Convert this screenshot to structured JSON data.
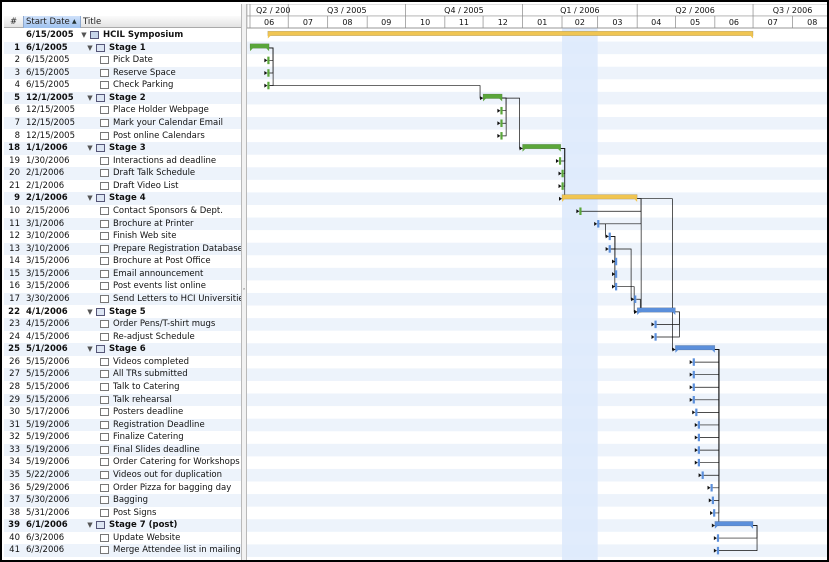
{
  "outline": {
    "columns": {
      "num": "#",
      "start_date": "Start Date",
      "title": "Title"
    },
    "sort_indicator": "▲",
    "rows": [
      {
        "id": "",
        "date": "6/15/2005",
        "title": "HCIL Symposium",
        "level": 0,
        "summary": true,
        "bar": "gold",
        "start": "2005-06-15",
        "end": "2006-06-30"
      },
      {
        "id": "1",
        "date": "6/1/2005",
        "title": "Stage 1",
        "level": 1,
        "summary": true,
        "bar": "green",
        "start": "2005-06-01",
        "end": "2005-06-15"
      },
      {
        "id": "2",
        "date": "6/15/2005",
        "title": "Pick Date",
        "level": 2,
        "summary": false,
        "bar": "green",
        "start": "2005-06-15",
        "end": "2005-06-15"
      },
      {
        "id": "3",
        "date": "6/15/2005",
        "title": "Reserve Space",
        "level": 2,
        "summary": false,
        "bar": "green",
        "start": "2005-06-15",
        "end": "2005-06-15"
      },
      {
        "id": "4",
        "date": "6/15/2005",
        "title": "Check Parking",
        "level": 2,
        "summary": false,
        "bar": "green",
        "start": "2005-06-15",
        "end": "2005-06-15"
      },
      {
        "id": "5",
        "date": "12/1/2005",
        "title": "Stage 2",
        "level": 1,
        "summary": true,
        "bar": "green",
        "start": "2005-12-01",
        "end": "2005-12-15"
      },
      {
        "id": "6",
        "date": "12/15/2005",
        "title": "Place Holder Webpage",
        "level": 2,
        "summary": false,
        "bar": "green",
        "start": "2005-12-15",
        "end": "2005-12-15"
      },
      {
        "id": "7",
        "date": "12/15/2005",
        "title": "Mark your Calendar Email",
        "level": 2,
        "summary": false,
        "bar": "green",
        "start": "2005-12-15",
        "end": "2005-12-15"
      },
      {
        "id": "8",
        "date": "12/15/2005",
        "title": "Post online Calendars",
        "level": 2,
        "summary": false,
        "bar": "green",
        "start": "2005-12-15",
        "end": "2005-12-15"
      },
      {
        "id": "18",
        "date": "1/1/2006",
        "title": "Stage 3",
        "level": 1,
        "summary": true,
        "bar": "green",
        "start": "2006-01-01",
        "end": "2006-01-30"
      },
      {
        "id": "19",
        "date": "1/30/2006",
        "title": "Interactions ad deadline",
        "level": 2,
        "summary": false,
        "bar": "green",
        "start": "2006-01-30",
        "end": "2006-01-30"
      },
      {
        "id": "20",
        "date": "2/1/2006",
        "title": "Draft Talk Schedule",
        "level": 2,
        "summary": false,
        "bar": "green",
        "start": "2006-02-01",
        "end": "2006-02-01"
      },
      {
        "id": "21",
        "date": "2/1/2006",
        "title": "Draft Video List",
        "level": 2,
        "summary": false,
        "bar": "green",
        "start": "2006-02-01",
        "end": "2006-02-01"
      },
      {
        "id": "9",
        "date": "2/1/2006",
        "title": "Stage 4",
        "level": 1,
        "summary": true,
        "bar": "gold",
        "start": "2006-02-01",
        "end": "2006-03-31"
      },
      {
        "id": "10",
        "date": "2/15/2006",
        "title": "Contact Sponsors & Dept.",
        "level": 2,
        "summary": false,
        "bar": "green",
        "start": "2006-02-15",
        "end": "2006-02-15"
      },
      {
        "id": "11",
        "date": "3/1/2006",
        "title": "Brochure at Printer",
        "level": 2,
        "summary": false,
        "bar": "blue",
        "start": "2006-03-01",
        "end": "2006-03-01"
      },
      {
        "id": "12",
        "date": "3/10/2006",
        "title": "Finish Web site",
        "level": 2,
        "summary": false,
        "bar": "blue",
        "start": "2006-03-10",
        "end": "2006-03-10"
      },
      {
        "id": "13",
        "date": "3/10/2006",
        "title": "Prepare Registration Database",
        "level": 2,
        "summary": false,
        "bar": "blue",
        "start": "2006-03-10",
        "end": "2006-03-10"
      },
      {
        "id": "14",
        "date": "3/15/2006",
        "title": "Brochure at Post Office",
        "level": 2,
        "summary": false,
        "bar": "blue",
        "start": "2006-03-15",
        "end": "2006-03-15"
      },
      {
        "id": "15",
        "date": "3/15/2006",
        "title": "Email announcement",
        "level": 2,
        "summary": false,
        "bar": "blue",
        "start": "2006-03-15",
        "end": "2006-03-15"
      },
      {
        "id": "16",
        "date": "3/15/2006",
        "title": "Post events list online",
        "level": 2,
        "summary": false,
        "bar": "blue",
        "start": "2006-03-15",
        "end": "2006-03-15"
      },
      {
        "id": "17",
        "date": "3/30/2006",
        "title": "Send Letters to HCI Universities",
        "level": 2,
        "summary": false,
        "bar": "blue",
        "start": "2006-03-30",
        "end": "2006-03-30"
      },
      {
        "id": "22",
        "date": "4/1/2006",
        "title": "Stage 5",
        "level": 1,
        "summary": true,
        "bar": "blue",
        "start": "2006-04-01",
        "end": "2006-04-30"
      },
      {
        "id": "23",
        "date": "4/15/2006",
        "title": "Order Pens/T-shirt mugs",
        "level": 2,
        "summary": false,
        "bar": "blue",
        "start": "2006-04-15",
        "end": "2006-04-15"
      },
      {
        "id": "24",
        "date": "4/15/2006",
        "title": "Re-adjust Schedule",
        "level": 2,
        "summary": false,
        "bar": "blue",
        "start": "2006-04-15",
        "end": "2006-04-15"
      },
      {
        "id": "25",
        "date": "5/1/2006",
        "title": "Stage 6",
        "level": 1,
        "summary": true,
        "bar": "blue",
        "start": "2006-05-01",
        "end": "2006-05-31"
      },
      {
        "id": "26",
        "date": "5/15/2006",
        "title": "Videos completed",
        "level": 2,
        "summary": false,
        "bar": "blue",
        "start": "2006-05-15",
        "end": "2006-05-15"
      },
      {
        "id": "27",
        "date": "5/15/2006",
        "title": "All TRs submitted",
        "level": 2,
        "summary": false,
        "bar": "blue",
        "start": "2006-05-15",
        "end": "2006-05-15"
      },
      {
        "id": "28",
        "date": "5/15/2006",
        "title": "Talk to Catering",
        "level": 2,
        "summary": false,
        "bar": "blue",
        "start": "2006-05-15",
        "end": "2006-05-15"
      },
      {
        "id": "29",
        "date": "5/15/2006",
        "title": "Talk rehearsal",
        "level": 2,
        "summary": false,
        "bar": "blue",
        "start": "2006-05-15",
        "end": "2006-05-15"
      },
      {
        "id": "30",
        "date": "5/17/2006",
        "title": "Posters deadline",
        "level": 2,
        "summary": false,
        "bar": "blue",
        "start": "2006-05-17",
        "end": "2006-05-17"
      },
      {
        "id": "31",
        "date": "5/19/2006",
        "title": "Registration Deadline",
        "level": 2,
        "summary": false,
        "bar": "blue",
        "start": "2006-05-19",
        "end": "2006-05-19"
      },
      {
        "id": "32",
        "date": "5/19/2006",
        "title": "Finalize Catering",
        "level": 2,
        "summary": false,
        "bar": "blue",
        "start": "2006-05-19",
        "end": "2006-05-19"
      },
      {
        "id": "33",
        "date": "5/19/2006",
        "title": "Final Slides deadline",
        "level": 2,
        "summary": false,
        "bar": "blue",
        "start": "2006-05-19",
        "end": "2006-05-19"
      },
      {
        "id": "34",
        "date": "5/19/2006",
        "title": "Order Catering for Workshops",
        "level": 2,
        "summary": false,
        "bar": "blue",
        "start": "2006-05-19",
        "end": "2006-05-19"
      },
      {
        "id": "35",
        "date": "5/22/2006",
        "title": "Videos out for duplication",
        "level": 2,
        "summary": false,
        "bar": "blue",
        "start": "2006-05-22",
        "end": "2006-05-22"
      },
      {
        "id": "36",
        "date": "5/29/2006",
        "title": "Order Pizza for bagging day",
        "level": 2,
        "summary": false,
        "bar": "blue",
        "start": "2006-05-29",
        "end": "2006-05-29"
      },
      {
        "id": "37",
        "date": "5/30/2006",
        "title": "Bagging",
        "level": 2,
        "summary": false,
        "bar": "blue",
        "start": "2006-05-30",
        "end": "2006-05-30"
      },
      {
        "id": "38",
        "date": "5/31/2006",
        "title": "Post Signs",
        "level": 2,
        "summary": false,
        "bar": "blue",
        "start": "2006-05-31",
        "end": "2006-05-31"
      },
      {
        "id": "39",
        "date": "6/1/2006",
        "title": "Stage 7 (post)",
        "level": 1,
        "summary": true,
        "bar": "blue",
        "start": "2006-06-01",
        "end": "2006-06-30"
      },
      {
        "id": "40",
        "date": "6/3/2006",
        "title": "Update Website",
        "level": 2,
        "summary": false,
        "bar": "blue",
        "start": "2006-06-03",
        "end": "2006-06-03"
      },
      {
        "id": "41",
        "date": "6/3/2006",
        "title": "Merge Attendee list in mailing li",
        "level": 2,
        "summary": false,
        "bar": "blue",
        "start": "2006-06-03",
        "end": "2006-06-03"
      }
    ]
  },
  "timeline": {
    "quarters": [
      {
        "label": "Q2 / 200",
        "start": "2005-06-01",
        "end": "2005-06-30"
      },
      {
        "label": "Q3 / 2005",
        "start": "2005-07-01",
        "end": "2005-09-30"
      },
      {
        "label": "Q4 / 2005",
        "start": "2005-10-01",
        "end": "2005-12-31"
      },
      {
        "label": "Q1 / 2006",
        "start": "2006-01-01",
        "end": "2006-03-31"
      },
      {
        "label": "Q2 / 2006",
        "start": "2006-04-01",
        "end": "2006-06-30"
      },
      {
        "label": "Q3 / 2006",
        "start": "2006-07-01",
        "end": "2006-08-31"
      }
    ],
    "months": [
      {
        "label": "06",
        "start": "2005-06-01"
      },
      {
        "label": "07",
        "start": "2005-07-01"
      },
      {
        "label": "08",
        "start": "2005-08-01"
      },
      {
        "label": "09",
        "start": "2005-09-01"
      },
      {
        "label": "10",
        "start": "2005-10-01"
      },
      {
        "label": "11",
        "start": "2005-11-01"
      },
      {
        "label": "12",
        "start": "2005-12-01"
      },
      {
        "label": "01",
        "start": "2006-01-01"
      },
      {
        "label": "02",
        "start": "2006-02-01"
      },
      {
        "label": "03",
        "start": "2006-03-01"
      },
      {
        "label": "04",
        "start": "2006-04-01"
      },
      {
        "label": "05",
        "start": "2006-05-01"
      },
      {
        "label": "06",
        "start": "2006-06-01"
      },
      {
        "label": "07",
        "start": "2006-07-01"
      },
      {
        "label": "08",
        "start": "2006-08-01"
      }
    ],
    "range": [
      "2005-06-01",
      "2006-08-31"
    ],
    "current_month_highlight": {
      "start": "2006-02-01",
      "end": "2006-02-28"
    },
    "colors": {
      "green": "#5aa63a",
      "gold": "#f0c552",
      "blue": "#5b8fdb",
      "highlight": "#dce9fb",
      "alt_row": "#edf3fb",
      "link": "#111111"
    },
    "links": [
      [
        1,
        2
      ],
      [
        1,
        3
      ],
      [
        1,
        4
      ],
      [
        4,
        5
      ],
      [
        5,
        6
      ],
      [
        5,
        7
      ],
      [
        5,
        8
      ],
      [
        5,
        9
      ],
      [
        9,
        10
      ],
      [
        9,
        11
      ],
      [
        9,
        12
      ],
      [
        9,
        13
      ],
      [
        13,
        14
      ],
      [
        13,
        15
      ],
      [
        13,
        22
      ],
      [
        15,
        16
      ],
      [
        16,
        17
      ],
      [
        16,
        18
      ],
      [
        16,
        19
      ],
      [
        16,
        20
      ],
      [
        17,
        21
      ],
      [
        20,
        22
      ],
      [
        21,
        22
      ],
      [
        22,
        23
      ],
      [
        22,
        24
      ],
      [
        13,
        25
      ],
      [
        25,
        26
      ],
      [
        25,
        27
      ],
      [
        25,
        28
      ],
      [
        25,
        29
      ],
      [
        25,
        30
      ],
      [
        25,
        31
      ],
      [
        25,
        32
      ],
      [
        25,
        33
      ],
      [
        25,
        34
      ],
      [
        25,
        35
      ],
      [
        25,
        36
      ],
      [
        25,
        37
      ],
      [
        25,
        38
      ],
      [
        25,
        39
      ],
      [
        39,
        40
      ],
      [
        39,
        41
      ]
    ]
  },
  "chart_data": {
    "type": "gantt",
    "x_range": [
      "2005-06-01",
      "2006-08-31"
    ]
  }
}
